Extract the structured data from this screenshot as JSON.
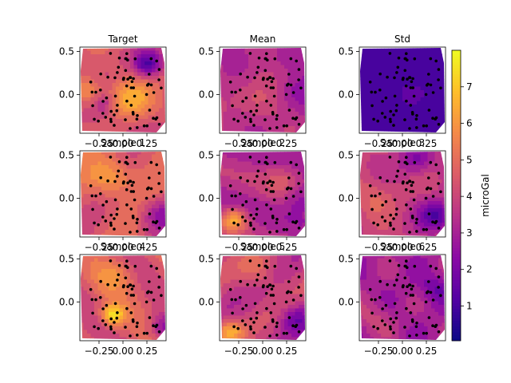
{
  "chart_data": {
    "type": "heatmap",
    "colormap": "plasma",
    "point_color": "#000000",
    "panels": [
      {
        "title": "Target",
        "row": 0,
        "col": 0,
        "field": "target"
      },
      {
        "title": "Mean",
        "row": 0,
        "col": 1,
        "field": "mean"
      },
      {
        "title": "Std",
        "row": 0,
        "col": 2,
        "field": "std"
      },
      {
        "title": "Sample 1",
        "row": 1,
        "col": 0,
        "field": "sample1"
      },
      {
        "title": "Sample 2",
        "row": 1,
        "col": 1,
        "field": "sample2"
      },
      {
        "title": "Sample 3",
        "row": 1,
        "col": 2,
        "field": "sample3"
      },
      {
        "title": "Sample 4",
        "row": 2,
        "col": 0,
        "field": "sample4"
      },
      {
        "title": "Sample 5",
        "row": 2,
        "col": 1,
        "field": "sample5"
      },
      {
        "title": "Sample 6",
        "row": 2,
        "col": 2,
        "field": "sample6"
      }
    ],
    "xlim": [
      -0.45,
      0.45
    ],
    "ylim": [
      -0.45,
      0.55
    ],
    "xticks": [
      -0.25,
      0.0,
      0.25
    ],
    "xtick_labels": [
      "−0.25",
      "0.00",
      "0.25"
    ],
    "yticks": [
      0.5,
      0.0
    ],
    "ytick_labels": [
      "0.5",
      "0.0"
    ],
    "colorbar": {
      "label": "microGal",
      "range": [
        0.05,
        8.0
      ],
      "ticks": [
        1,
        2,
        3,
        4,
        5,
        6,
        7
      ],
      "tick_labels": [
        "1",
        "2",
        "3",
        "4",
        "5",
        "6",
        "7"
      ]
    }
  }
}
